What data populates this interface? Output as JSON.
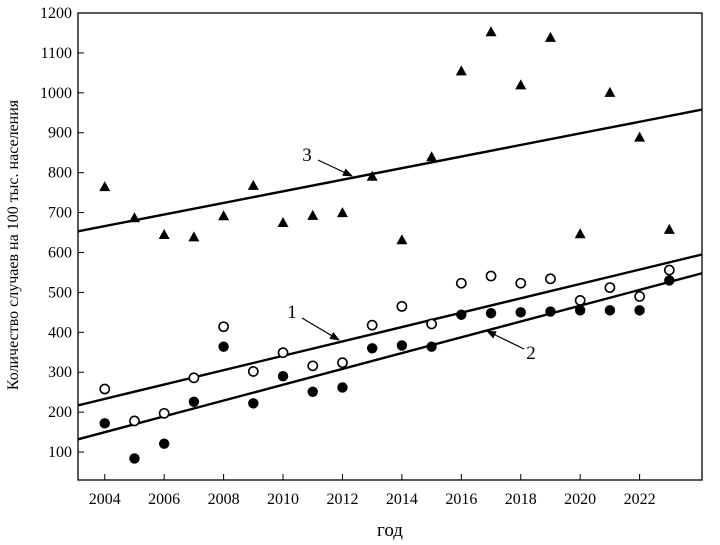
{
  "chart_data": {
    "type": "scatter",
    "xlabel": "год",
    "ylabel": "Количество случаев на 100 тыс. населения",
    "xlim": [
      2003.1,
      2024.1
    ],
    "ylim": [
      30,
      1200
    ],
    "x_ticks": [
      2004,
      2006,
      2008,
      2010,
      2012,
      2014,
      2016,
      2018,
      2020,
      2022
    ],
    "y_ticks": [
      100,
      200,
      300,
      400,
      500,
      600,
      700,
      800,
      900,
      1000,
      1100,
      1200
    ],
    "x_tick_labels": [
      "2004",
      "2006",
      "2008",
      "2010",
      "2012",
      "2014",
      "2016",
      "2018",
      "2020",
      "2022"
    ],
    "y_tick_labels": [
      "100",
      "200",
      "300",
      "400",
      "500",
      "600",
      "700",
      "800",
      "900",
      "1000",
      "1100",
      "1200"
    ],
    "x": [
      2004,
      2005,
      2006,
      2007,
      2008,
      2009,
      2010,
      2011,
      2012,
      2013,
      2014,
      2015,
      2016,
      2017,
      2018,
      2019,
      2020,
      2021,
      2022,
      2023
    ],
    "series": [
      {
        "marker": "open-circle",
        "values": [
          258,
          178,
          197,
          286,
          414,
          302,
          349,
          316,
          324,
          418,
          465,
          421,
          523,
          541,
          523,
          534,
          480,
          512,
          490,
          556
        ],
        "trend": [
          217,
          595
        ],
        "label": "1"
      },
      {
        "marker": "filled-circle",
        "values": [
          172,
          84,
          121,
          226,
          364,
          222,
          290,
          251,
          262,
          360,
          367,
          364,
          444,
          448,
          450,
          452,
          455,
          455,
          455,
          530
        ],
        "trend": [
          132,
          548
        ],
        "label": "2"
      },
      {
        "marker": "filled-triangle",
        "values": [
          765,
          687,
          645,
          639,
          692,
          768,
          675,
          693,
          700,
          791,
          632,
          840,
          1055,
          1153,
          1020,
          1139,
          647,
          1001,
          889,
          658
        ],
        "trend": [
          653,
          958
        ],
        "label": "3"
      }
    ],
    "annotations": [
      {
        "text": "1",
        "series": 0
      },
      {
        "text": "2",
        "series": 1
      },
      {
        "text": "3",
        "series": 2
      }
    ],
    "grid": false,
    "legend": "none"
  }
}
